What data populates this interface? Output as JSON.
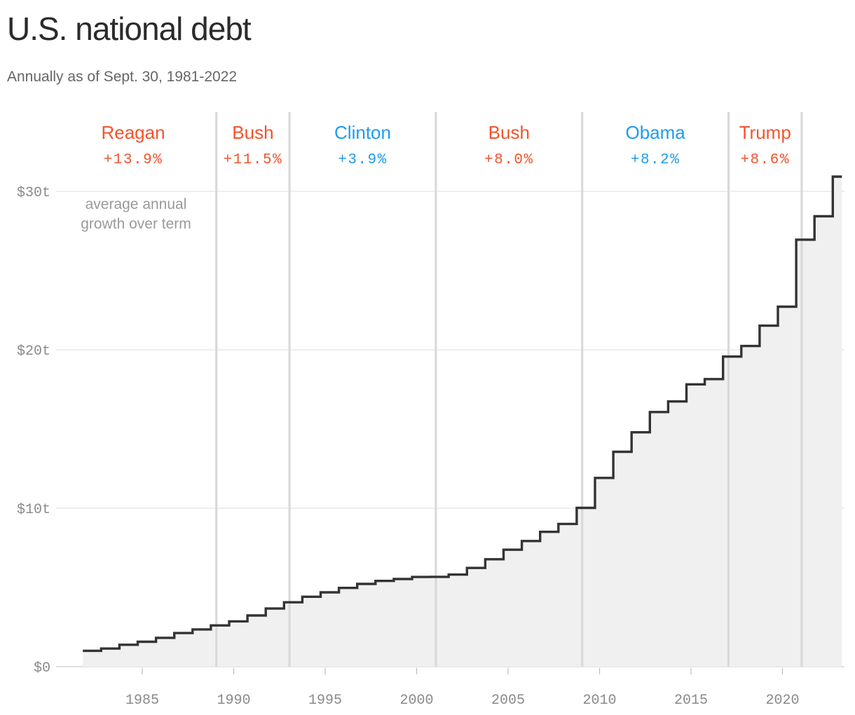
{
  "title": "U.S. national debt",
  "subtitle": "Annually as of Sept. 30, 1981-2022",
  "annotation": [
    "average annual",
    "growth over term"
  ],
  "colors": {
    "republican": "#f2542d",
    "democrat": "#1d9bf0",
    "line": "#333333",
    "area": "#f0f0f0",
    "grid": "#e3e3e3",
    "term_divider": "#d9d9d9",
    "axis_text": "#8a8a8a",
    "annotation_text": "#9a9a9a"
  },
  "chart_data": {
    "type": "area",
    "step": true,
    "title": "U.S. national debt",
    "subtitle": "Annually as of Sept. 30, 1981-2022",
    "xlabel": "",
    "ylabel": "",
    "xlim": [
      1981,
      2023
    ],
    "ylim": [
      0,
      32
    ],
    "grid": true,
    "x_ticks": [
      1985,
      1990,
      1995,
      2000,
      2005,
      2010,
      2015,
      2020
    ],
    "x_tick_labels": [
      "1985",
      "1990",
      "1995",
      "2000",
      "2005",
      "2010",
      "2015",
      "2020"
    ],
    "y_ticks": [
      0,
      10,
      20,
      30
    ],
    "y_tick_labels": [
      "$0",
      "$10t",
      "$20t",
      "$30t"
    ],
    "series": [
      {
        "x": [
          1981,
          1982,
          1983,
          1984,
          1985,
          1986,
          1987,
          1988,
          1989,
          1990,
          1991,
          1992,
          1993,
          1994,
          1995,
          1996,
          1997,
          1998,
          1999,
          2000,
          2001,
          2002,
          2003,
          2004,
          2005,
          2006,
          2007,
          2008,
          2009,
          2010,
          2011,
          2012,
          2013,
          2014,
          2015,
          2016,
          2017,
          2018,
          2019,
          2020,
          2021,
          2022
        ],
        "values": [
          1.0,
          1.14,
          1.38,
          1.57,
          1.82,
          2.12,
          2.35,
          2.6,
          2.86,
          3.23,
          3.67,
          4.06,
          4.41,
          4.69,
          4.97,
          5.22,
          5.41,
          5.53,
          5.66,
          5.67,
          5.81,
          6.23,
          6.78,
          7.38,
          7.93,
          8.51,
          9.01,
          10.02,
          11.91,
          13.56,
          14.79,
          16.07,
          16.74,
          17.82,
          18.15,
          19.57,
          20.24,
          21.52,
          22.72,
          26.95,
          28.43,
          30.93
        ]
      }
    ],
    "terms": [
      {
        "name": "Reagan",
        "growth": "+13.9%",
        "party": "republican",
        "start": 1981.05,
        "end": 1989.05
      },
      {
        "name": "Bush",
        "growth": "+11.5%",
        "party": "republican",
        "start": 1989.05,
        "end": 1993.05
      },
      {
        "name": "Clinton",
        "growth": "+3.9%",
        "party": "democrat",
        "start": 1993.05,
        "end": 2001.05
      },
      {
        "name": "Bush",
        "growth": "+8.0%",
        "party": "republican",
        "start": 2001.05,
        "end": 2009.05
      },
      {
        "name": "Obama",
        "growth": "+8.2%",
        "party": "democrat",
        "start": 2009.05,
        "end": 2017.05
      },
      {
        "name": "Trump",
        "growth": "+8.6%",
        "party": "republican",
        "start": 2017.05,
        "end": 2021.05
      }
    ]
  }
}
